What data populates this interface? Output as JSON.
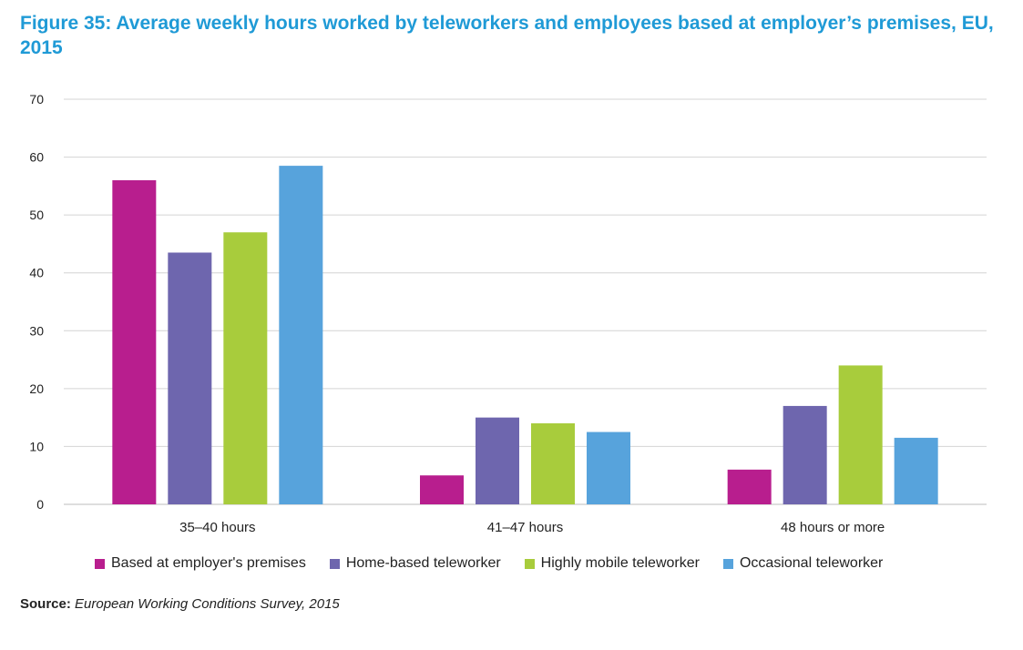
{
  "title": "Figure 35: Average weekly hours worked by teleworkers and employees based at employer’s premises, EU, 2015",
  "source_label": "Source:",
  "source_text": "European Working Conditions Survey, 2015",
  "chart_data": {
    "type": "bar",
    "categories": [
      "35–40 hours",
      "41–47 hours",
      "48 hours or more"
    ],
    "series": [
      {
        "name": "Based at employer's premises",
        "color": "#b81e8e",
        "values": [
          56,
          5,
          6
        ]
      },
      {
        "name": "Home-based teleworker",
        "color": "#6e66ae",
        "values": [
          43.5,
          15,
          17
        ]
      },
      {
        "name": "Highly mobile teleworker",
        "color": "#a8cc3c",
        "values": [
          47,
          14,
          24
        ]
      },
      {
        "name": "Occasional teleworker",
        "color": "#57a3dc",
        "values": [
          58.5,
          12.5,
          11.5
        ]
      }
    ],
    "ylim": [
      0,
      70
    ],
    "yticks": [
      0,
      10,
      20,
      30,
      40,
      50,
      60,
      70
    ],
    "grid": true,
    "legend": "bottom"
  }
}
